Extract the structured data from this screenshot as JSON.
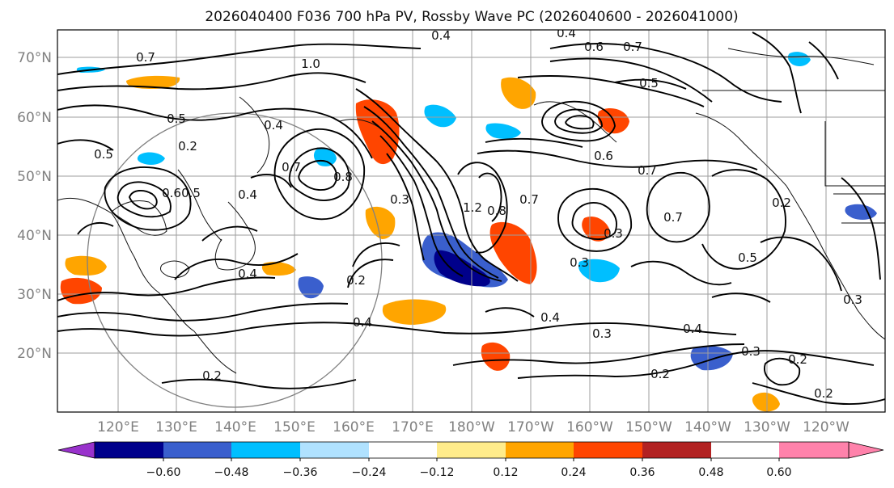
{
  "title": "2026040400 F036 700 hPa PV, Rossby Wave PC (2026040600 - 2026041000)",
  "lat_labels": [
    "70°N",
    "60°N",
    "50°N",
    "40°N",
    "30°N",
    "20°N"
  ],
  "lon_labels": [
    "120°E",
    "130°E",
    "140°E",
    "150°E",
    "160°E",
    "170°E",
    "180°W",
    "170°W",
    "160°W",
    "150°W",
    "140°W",
    "130°W",
    "120°W"
  ],
  "colorbar": {
    "ticks": [
      "−0.60",
      "−0.48",
      "−0.36",
      "−0.24",
      "−0.12",
      "0.12",
      "0.24",
      "0.36",
      "0.48",
      "0.60"
    ],
    "colors": [
      "#9932cc",
      "#00008b",
      "#3a5fcd",
      "#00bfff",
      "#b0e2ff",
      "#ffffff",
      "#ffec8b",
      "#ffa500",
      "#ff4500",
      "#b22222",
      "#ff82ab"
    ]
  },
  "contour_labels": [
    "0.4",
    "0.4",
    "0.7",
    "1.0",
    "0.6",
    "0.7",
    "0.5",
    "0.5",
    "0.2",
    "0.4",
    "0.5",
    "0.5",
    "0.6",
    "0.7",
    "0.8",
    "0.6",
    "0.7",
    "0.3",
    "1.2",
    "0.8",
    "0.7",
    "0.4",
    "0.3",
    "0.7",
    "0.5",
    "0.4",
    "0.3",
    "0.2",
    "0.4",
    "0.2",
    "0.4",
    "0.3",
    "0.2",
    "0.3",
    "0.2",
    "0.2",
    "0.2",
    "0.4",
    "0.3"
  ]
}
